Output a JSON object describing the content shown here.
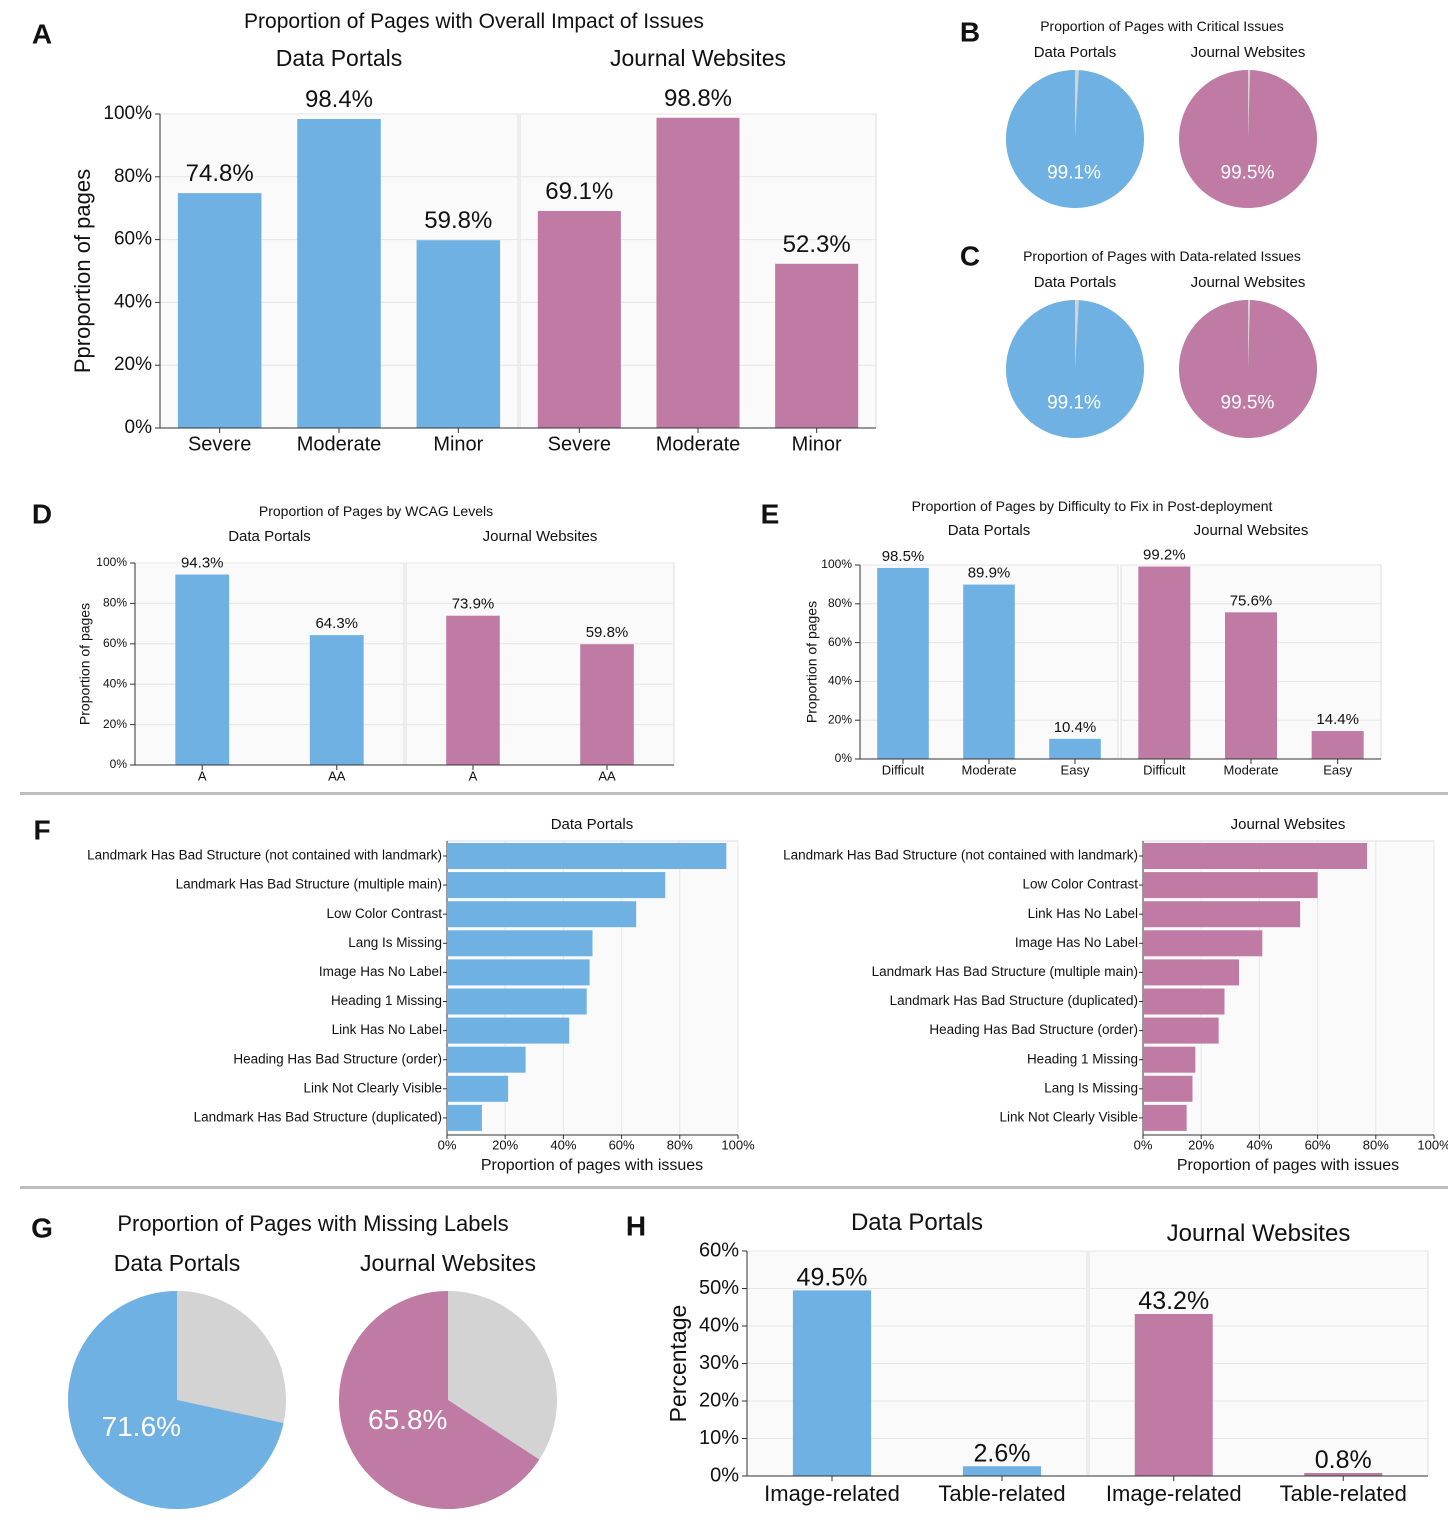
{
  "colors": {
    "blue": "#6eb1e2",
    "pink": "#c07ba5",
    "gray": "#d3d3d3"
  },
  "panels": {
    "A": {
      "letter": "A",
      "title": "Proportion of Pages with Overall Impact of Issues"
    },
    "B": {
      "letter": "B"
    },
    "C": {
      "letter": "C"
    },
    "D": {
      "letter": "D"
    },
    "E": {
      "letter": "E"
    },
    "F": {
      "letter": "F"
    },
    "G": {
      "letter": "G",
      "title": "Proportion of Pages with Missing Labels"
    },
    "H": {
      "letter": "H"
    }
  },
  "chart_data": [
    {
      "id": "A",
      "type": "bar",
      "title": "Proportion of Pages with Overall Impact of Issues",
      "ylabel": "Pproportion of pages",
      "ylim": [
        0,
        100
      ],
      "yticks": [
        "0%",
        "20%",
        "40%",
        "60%",
        "80%",
        "100%"
      ],
      "grid": true,
      "facets": [
        {
          "name": "Data Portals",
          "color": "#6eb1e2",
          "categories": [
            "Severe",
            "Moderate",
            "Minor"
          ],
          "values": [
            74.8,
            98.4,
            59.8
          ],
          "labels": [
            "74.8%",
            "98.4%",
            "59.8%"
          ]
        },
        {
          "name": "Journal Websites",
          "color": "#c07ba5",
          "categories": [
            "Severe",
            "Moderate",
            "Minor"
          ],
          "values": [
            69.1,
            98.8,
            52.3
          ],
          "labels": [
            "69.1%",
            "98.8%",
            "52.3%"
          ]
        }
      ]
    },
    {
      "id": "B",
      "type": "pie",
      "title": "Proportion of Pages with Critical Issues",
      "pies": [
        {
          "name": "Data Portals",
          "value": 99.1,
          "label": "99.1%",
          "color": "#6eb1e2"
        },
        {
          "name": "Journal Websites",
          "value": 99.5,
          "label": "99.5%",
          "color": "#c07ba5"
        }
      ]
    },
    {
      "id": "C",
      "type": "pie",
      "title": "Proportion of Pages with Data-related Issues",
      "pies": [
        {
          "name": "Data Portals",
          "value": 99.1,
          "label": "99.1%",
          "color": "#6eb1e2"
        },
        {
          "name": "Journal Websites",
          "value": 99.5,
          "label": "99.5%",
          "color": "#c07ba5"
        }
      ]
    },
    {
      "id": "D",
      "type": "bar",
      "title": "Proportion of Pages by WCAG Levels",
      "ylabel": "Proportion of pages",
      "ylim": [
        0,
        100
      ],
      "yticks": [
        "0%",
        "20%",
        "40%",
        "60%",
        "80%",
        "100%"
      ],
      "grid": true,
      "facets": [
        {
          "name": "Data Portals",
          "color": "#6eb1e2",
          "categories": [
            "A",
            "AA"
          ],
          "values": [
            94.3,
            64.3
          ],
          "labels": [
            "94.3%",
            "64.3%"
          ]
        },
        {
          "name": "Journal Websites",
          "color": "#c07ba5",
          "categories": [
            "A",
            "AA"
          ],
          "values": [
            73.9,
            59.8
          ],
          "labels": [
            "73.9%",
            "59.8%"
          ]
        }
      ]
    },
    {
      "id": "E",
      "type": "bar",
      "title": "Proportion of Pages by Difficulty to Fix in Post-deployment",
      "ylabel": "Proportion of pages",
      "ylim": [
        0,
        100
      ],
      "yticks": [
        "0%",
        "20%",
        "40%",
        "60%",
        "80%",
        "100%"
      ],
      "grid": true,
      "facets": [
        {
          "name": "Data Portals",
          "color": "#6eb1e2",
          "categories": [
            "Difficult",
            "Moderate",
            "Easy"
          ],
          "values": [
            98.5,
            89.9,
            10.4
          ],
          "labels": [
            "98.5%",
            "89.9%",
            "10.4%"
          ]
        },
        {
          "name": "Journal Websites",
          "color": "#c07ba5",
          "categories": [
            "Difficult",
            "Moderate",
            "Easy"
          ],
          "values": [
            99.2,
            75.6,
            14.4
          ],
          "labels": [
            "99.2%",
            "75.6%",
            "14.4%"
          ]
        }
      ]
    },
    {
      "id": "F",
      "type": "bar",
      "orientation": "horizontal",
      "xlabel": "Proportion of pages with issues",
      "xlim": [
        0,
        100
      ],
      "xticks": [
        "0%",
        "20%",
        "40%",
        "60%",
        "80%",
        "100%"
      ],
      "grid": true,
      "facets": [
        {
          "name": "Data Portals",
          "color": "#6eb1e2",
          "categories": [
            "Landmark Has Bad Structure (not contained with landmark)",
            "Landmark Has Bad Structure (multiple main)",
            "Low Color Contrast",
            "Lang Is Missing",
            "Image Has No Label",
            "Heading 1 Missing",
            "Link Has No Label",
            "Heading Has Bad Structure (order)",
            "Link Not Clearly Visible",
            "Landmark Has Bad Structure (duplicated)"
          ],
          "values": [
            96,
            75,
            65,
            50,
            49,
            48,
            42,
            27,
            21,
            12
          ]
        },
        {
          "name": "Journal Websites",
          "color": "#c07ba5",
          "categories": [
            "Landmark Has Bad Structure (not contained with landmark)",
            "Low Color Contrast",
            "Link Has No Label",
            "Image Has No Label",
            "Landmark Has Bad Structure (multiple main)",
            "Landmark Has Bad Structure (duplicated)",
            "Heading Has Bad Structure (order)",
            "Heading 1 Missing",
            "Lang Is Missing",
            "Link Not Clearly Visible"
          ],
          "values": [
            77,
            60,
            54,
            41,
            33,
            28,
            26,
            18,
            17,
            15
          ]
        }
      ]
    },
    {
      "id": "G",
      "type": "pie",
      "title": "Proportion of Pages with Missing Labels",
      "pies": [
        {
          "name": "Data Portals",
          "value": 71.6,
          "label": "71.6%",
          "color": "#6eb1e2"
        },
        {
          "name": "Journal Websites",
          "value": 65.8,
          "label": "65.8%",
          "color": "#c07ba5"
        }
      ]
    },
    {
      "id": "H",
      "type": "bar",
      "ylabel": "Percentage",
      "ylim": [
        0,
        60
      ],
      "yticks": [
        "0%",
        "10%",
        "20%",
        "30%",
        "40%",
        "50%",
        "60%"
      ],
      "grid": true,
      "facets": [
        {
          "name": "Data Portals",
          "color": "#6eb1e2",
          "categories": [
            "Image-related",
            "Table-related"
          ],
          "values": [
            49.5,
            2.6
          ],
          "labels": [
            "49.5%",
            "2.6%"
          ]
        },
        {
          "name": "Journal Websites",
          "color": "#c07ba5",
          "categories": [
            "Image-related",
            "Table-related"
          ],
          "values": [
            43.2,
            0.8
          ],
          "labels": [
            "43.2%",
            "0.8%"
          ]
        }
      ]
    }
  ]
}
